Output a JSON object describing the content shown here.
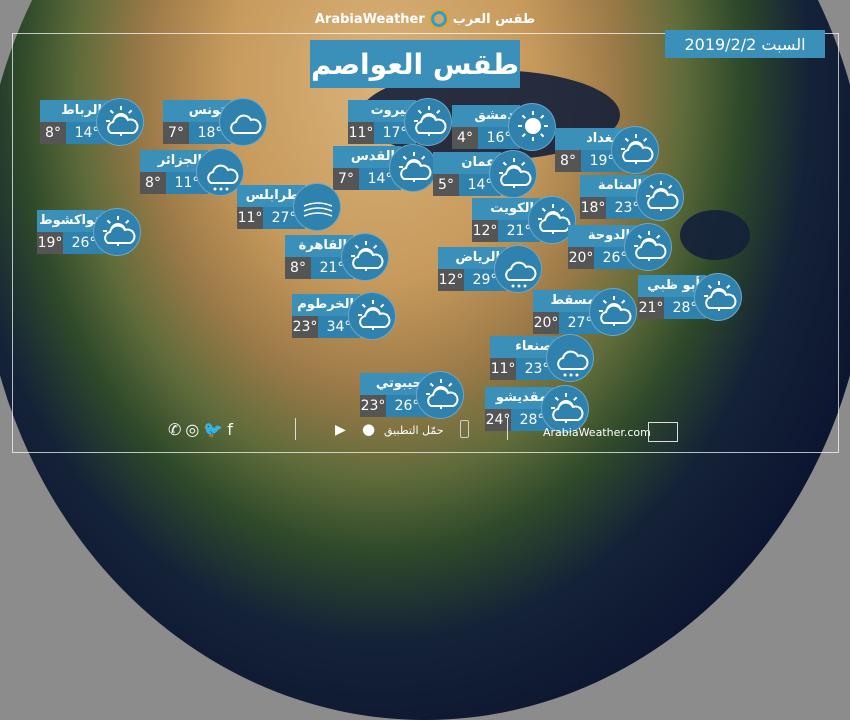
{
  "header": {
    "brand_en": "ArabiaWeather",
    "brand_ar": "طقس العرب",
    "title": "طقس العواصم",
    "date": "السبت 2019/2/2"
  },
  "colors": {
    "accent": "#3a90b8",
    "min_bg": "#555555"
  },
  "cities": [
    {
      "name": "الرباط",
      "min": "8°",
      "max": "14°",
      "icon": "partly-cloudy"
    },
    {
      "name": "تونس",
      "min": "7°",
      "max": "18°",
      "icon": "cloudy"
    },
    {
      "name": "بيروت",
      "min": "11°",
      "max": "17°",
      "icon": "partly-cloudy"
    },
    {
      "name": "دمشق",
      "min": "4°",
      "max": "16°",
      "icon": "sunny"
    },
    {
      "name": "بغداد",
      "min": "8°",
      "max": "19°",
      "icon": "partly-cloudy"
    },
    {
      "name": "الجزائر",
      "min": "8°",
      "max": "11°",
      "icon": "rain-wind"
    },
    {
      "name": "القدس",
      "min": "7°",
      "max": "14°",
      "icon": "partly-cloudy"
    },
    {
      "name": "عمان",
      "min": "5°",
      "max": "14°",
      "icon": "partly-cloudy"
    },
    {
      "name": "المنامة",
      "min": "18°",
      "max": "23°",
      "icon": "partly-cloudy"
    },
    {
      "name": "نواكشوط",
      "min": "19°",
      "max": "26°",
      "icon": "partly-cloudy"
    },
    {
      "name": "طرابلس",
      "min": "11°",
      "max": "27°",
      "icon": "dusty-wind"
    },
    {
      "name": "الكويت",
      "min": "12°",
      "max": "21°",
      "icon": "partly-cloudy"
    },
    {
      "name": "الدوحة",
      "min": "20°",
      "max": "26°",
      "icon": "partly-cloudy"
    },
    {
      "name": "القاهرة",
      "min": "8°",
      "max": "21°",
      "icon": "partly-cloudy"
    },
    {
      "name": "الرياض",
      "min": "12°",
      "max": "29°",
      "icon": "cloudy-night-rain"
    },
    {
      "name": "أبو ظبي",
      "min": "21°",
      "max": "28°",
      "icon": "partly-cloudy"
    },
    {
      "name": "الخرطوم",
      "min": "23°",
      "max": "34°",
      "icon": "partly-cloudy"
    },
    {
      "name": "مسقط",
      "min": "20°",
      "max": "27°",
      "icon": "partly-cloudy"
    },
    {
      "name": "صنعاء",
      "min": "11°",
      "max": "23°",
      "icon": "cloudy-rain"
    },
    {
      "name": "جيبوتي",
      "min": "23°",
      "max": "26°",
      "icon": "partly-cloudy"
    },
    {
      "name": "مقديشو",
      "min": "24°",
      "max": "28°",
      "icon": "partly-cloudy"
    }
  ],
  "footer": {
    "app_label": "حمّل التطبيق",
    "website": "ArabiaWeather.com",
    "social": [
      "whatsapp-icon",
      "instagram-icon",
      "twitter-icon",
      "facebook-icon"
    ]
  }
}
